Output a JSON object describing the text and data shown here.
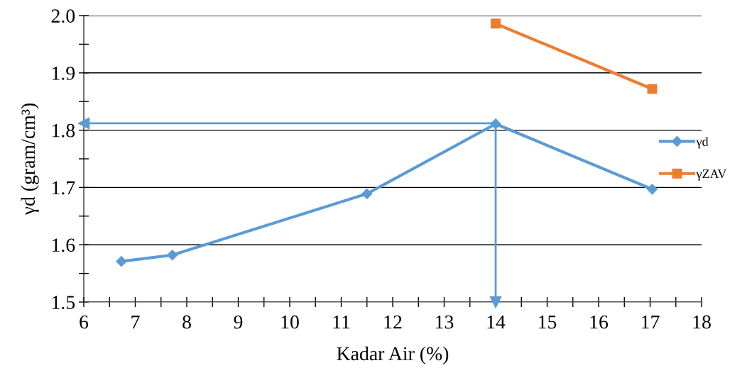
{
  "chart_data": {
    "type": "line",
    "xlabel": "Kadar Air (%)",
    "ylabel": "γd (gram/cm³)",
    "series": [
      {
        "name": "γd",
        "color": "#5b9bd5",
        "marker": "diamond",
        "x": [
          6.73,
          7.72,
          11.5,
          14.0,
          17.04
        ],
        "values": [
          1.571,
          1.582,
          1.689,
          1.811,
          1.697
        ]
      },
      {
        "name": "γZAV",
        "color": "#ed7d31",
        "marker": "square",
        "x": [
          14.0,
          17.04
        ],
        "values": [
          1.986,
          1.872
        ]
      }
    ],
    "xlim": [
      6,
      18
    ],
    "xticks": [
      6,
      {
        "value": 6.5,
        "label": null
      },
      7,
      {
        "value": 7.5,
        "label": null
      },
      8,
      {
        "value": 8.5,
        "label": null
      },
      9,
      {
        "value": 9.5,
        "label": null
      },
      10,
      {
        "value": 10.5,
        "label": null
      },
      11,
      {
        "value": 11.5,
        "label": null
      },
      12,
      {
        "value": 12.5,
        "label": null
      },
      13,
      {
        "value": 13.5,
        "label": null
      },
      14,
      {
        "value": 14.5,
        "label": null
      },
      15,
      {
        "value": 15.5,
        "label": null
      },
      16,
      {
        "value": 16.5,
        "label": null
      },
      17,
      {
        "value": 17.5,
        "label": null
      },
      18
    ],
    "ylim": [
      1.5,
      2.0
    ],
    "yticks": [
      {
        "value": 1.5,
        "label": "1.5"
      },
      {
        "value": 1.55,
        "label": null
      },
      {
        "value": 1.6,
        "label": "1.6"
      },
      {
        "value": 1.65,
        "label": null
      },
      {
        "value": 1.7,
        "label": "1.7"
      },
      {
        "value": 1.75,
        "label": null
      },
      {
        "value": 1.8,
        "label": "1.8"
      },
      {
        "value": 1.85,
        "label": null
      },
      {
        "value": 1.9,
        "label": "1.9"
      },
      {
        "value": 1.95,
        "label": null
      },
      {
        "value": 2.0,
        "label": "2.0"
      }
    ],
    "ref_lines": [
      {
        "axis": "y",
        "value": 1.812,
        "color": "#5b9bd5"
      },
      {
        "axis": "x",
        "value": 14,
        "color": "#5b9bd5"
      }
    ],
    "grid": "y",
    "legend": "right"
  }
}
